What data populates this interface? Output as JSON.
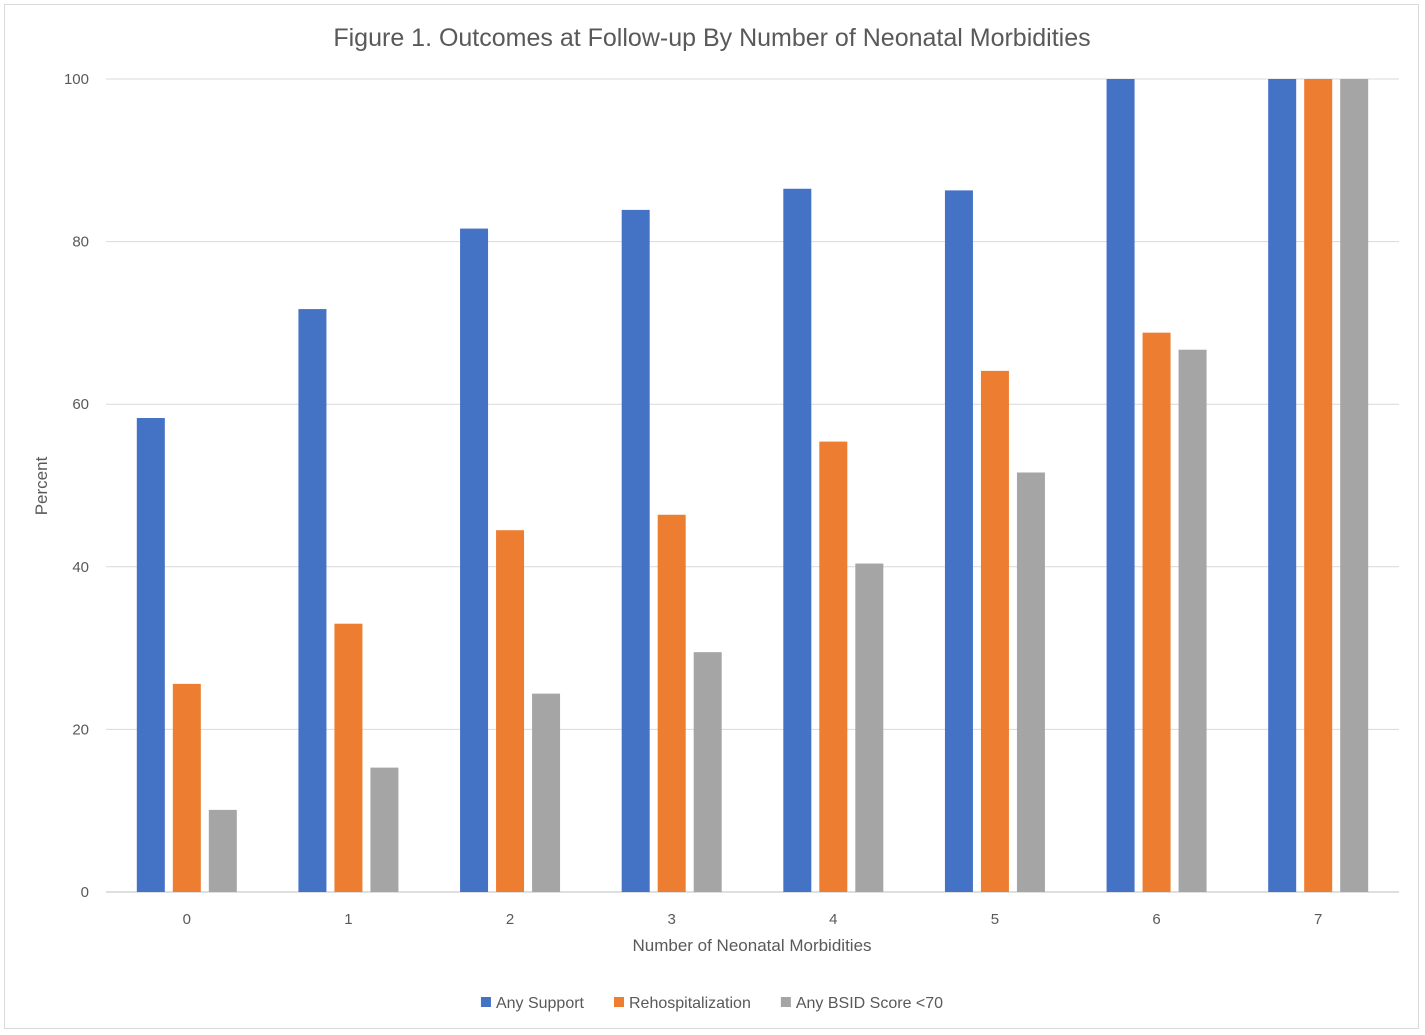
{
  "chart_data": {
    "type": "bar",
    "title": "Figure 1. Outcomes at Follow-up By Number of Neonatal Morbidities",
    "xlabel": "Number of Neonatal Morbidities",
    "ylabel": "Percent",
    "ylim": [
      0,
      100
    ],
    "yticks": [
      0,
      20,
      40,
      60,
      80,
      100
    ],
    "categories": [
      "0",
      "1",
      "2",
      "3",
      "4",
      "5",
      "6",
      "7"
    ],
    "series": [
      {
        "name": "Any Support",
        "color": "#4472c4",
        "values": [
          58.3,
          71.7,
          81.6,
          83.9,
          86.5,
          86.3,
          100,
          100
        ]
      },
      {
        "name": "Rehospitalization",
        "color": "#ed7d31",
        "values": [
          25.6,
          33.0,
          44.5,
          46.4,
          55.4,
          64.1,
          68.8,
          100
        ]
      },
      {
        "name": "Any BSID Score <70",
        "color": "#a5a5a5",
        "values": [
          10.1,
          15.3,
          24.4,
          29.5,
          40.4,
          51.6,
          66.7,
          100
        ]
      }
    ],
    "grid": true,
    "legend": "bottom"
  }
}
